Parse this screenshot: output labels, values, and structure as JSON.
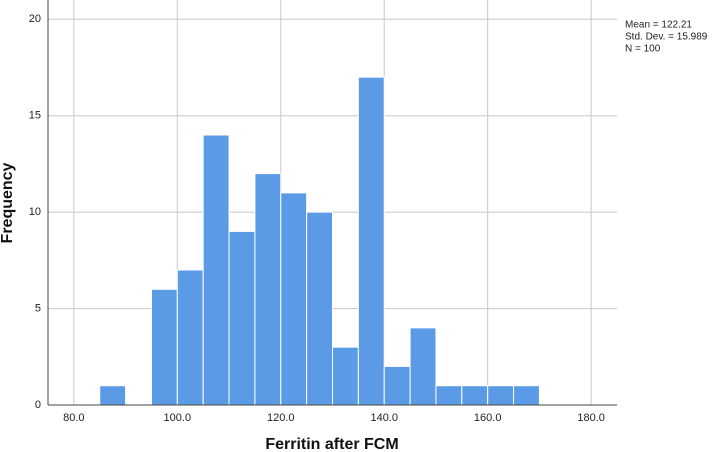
{
  "chart_data": {
    "type": "histogram",
    "x_label": "Ferritin after FCM",
    "y_label": "Frequency",
    "bins": [
      85,
      90,
      95,
      100,
      105,
      110,
      115,
      120,
      125,
      130,
      135,
      140,
      145,
      150,
      155,
      160,
      165,
      170
    ],
    "counts": [
      1,
      0,
      6,
      7,
      14,
      9,
      12,
      11,
      10,
      3,
      17,
      2,
      4,
      1,
      1,
      1,
      1
    ],
    "color": "#5b9be5",
    "xlim": [
      75,
      185
    ],
    "xticks": [
      {
        "value": 80,
        "label": "80.0"
      },
      {
        "value": 100,
        "label": "100.0"
      },
      {
        "value": 120,
        "label": "120.0"
      },
      {
        "value": 140,
        "label": "140.0"
      },
      {
        "value": 160,
        "label": "160.0"
      },
      {
        "value": 180,
        "label": "180.0"
      }
    ],
    "ylim": [
      0,
      21
    ],
    "yticks": [
      0,
      5,
      10,
      15,
      20
    ],
    "grid": true,
    "annotations": [
      "Mean = 122.21",
      "Std. Dev. = 15.989",
      "N = 100"
    ]
  }
}
